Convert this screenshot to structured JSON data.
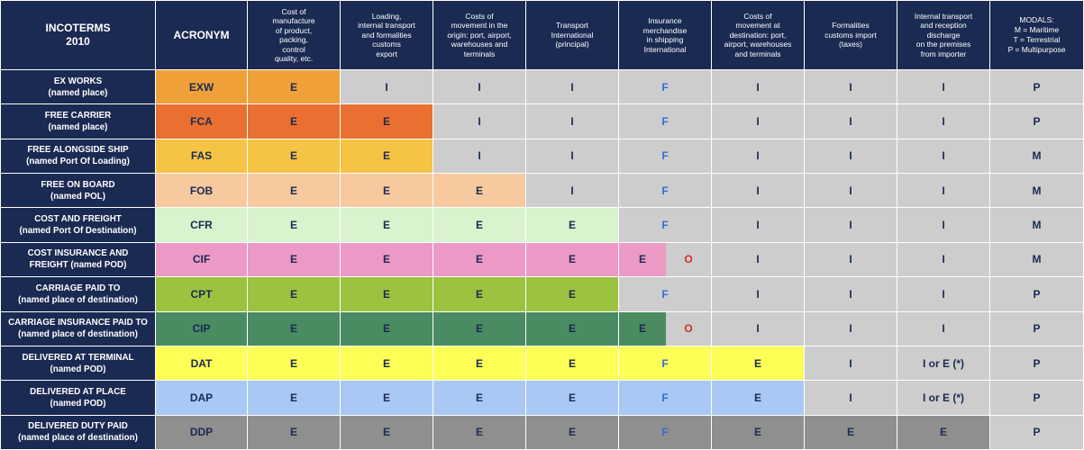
{
  "header": {
    "incoterms": [
      "INCOTERMS",
      "2010"
    ],
    "acronym": [
      "ACRONYM"
    ],
    "manufacture": [
      "Cost of",
      "manufacture",
      "of product,",
      "packing,",
      "control",
      "quality, etc."
    ],
    "loading": [
      "Loading,",
      "internal transport",
      "and formalities",
      "customs",
      "export"
    ],
    "origin": [
      "Costs of",
      "movement in the",
      "origin: port, airport,",
      "warehouses and",
      "terminals"
    ],
    "transport": [
      "Transport",
      "International",
      "(principal)"
    ],
    "insurance": [
      "Insurance",
      "merchandise",
      "in shipping",
      "International"
    ],
    "destination": [
      "Costs of",
      "movement at",
      "destination: port,",
      "airport, warehouses",
      "and terminals"
    ],
    "formalities": [
      "Formalities",
      "customs import",
      "(taxes)"
    ],
    "internal": [
      "Internal transport",
      "and reception",
      "discharge",
      "on the premises",
      "from importer"
    ],
    "modals": [
      "MODALS:",
      "M = Maritime",
      "T = Terrestrial",
      "P = Multipurpose"
    ]
  },
  "rows": [
    {
      "name": [
        "EX WORKS",
        "(named place)"
      ],
      "acronym": "EXW",
      "cells": [
        "E",
        "I",
        "I",
        "I",
        "F",
        "I",
        "I",
        "I"
      ],
      "modal": "P"
    },
    {
      "name": [
        "FREE CARRIER",
        "(named place)"
      ],
      "acronym": "FCA",
      "cells": [
        "E",
        "E",
        "I",
        "I",
        "F",
        "I",
        "I",
        "I"
      ],
      "modal": "P"
    },
    {
      "name": [
        "FREE ALONGSIDE SHIP",
        "(named Port Of Loading)"
      ],
      "acronym": "FAS",
      "cells": [
        "E",
        "E",
        "I",
        "I",
        "F",
        "I",
        "I",
        "I"
      ],
      "modal": "M"
    },
    {
      "name": [
        "FREE ON BOARD",
        "(named POL)"
      ],
      "acronym": "FOB",
      "cells": [
        "E",
        "E",
        "E",
        "I",
        "F",
        "I",
        "I",
        "I"
      ],
      "modal": "M"
    },
    {
      "name": [
        "COST AND FREIGHT",
        "(named Port Of Destination)"
      ],
      "acronym": "CFR",
      "cells": [
        "E",
        "E",
        "E",
        "E",
        "F",
        "I",
        "I",
        "I"
      ],
      "modal": "M"
    },
    {
      "name": [
        "COST INSURANCE AND",
        "FREIGHT (named POD)"
      ],
      "acronym": "CIF",
      "cells": [
        "E",
        "E",
        "E",
        "E",
        "E|O",
        "I",
        "I",
        "I"
      ],
      "modal": "M"
    },
    {
      "name": [
        "CARRIAGE PAID TO",
        "(named place of destination)"
      ],
      "acronym": "CPT",
      "cells": [
        "E",
        "E",
        "E",
        "E",
        "F",
        "I",
        "I",
        "I"
      ],
      "modal": "P"
    },
    {
      "name": [
        "CARRIAGE INSURANCE PAID TO",
        "(named place of destination)"
      ],
      "acronym": "CIP",
      "cells": [
        "E",
        "E",
        "E",
        "E",
        "E|O",
        "I",
        "I",
        "I"
      ],
      "modal": "P"
    },
    {
      "name": [
        "DELIVERED AT TERMINAL",
        "(named POD)"
      ],
      "acronym": "DAT",
      "cells": [
        "E",
        "E",
        "E",
        "E",
        "F",
        "E",
        "I",
        "I or E (*)"
      ],
      "modal": "P"
    },
    {
      "name": [
        "DELIVERED AT PLACE",
        "(named POD)"
      ],
      "acronym": "DAP",
      "cells": [
        "E",
        "E",
        "E",
        "E",
        "F",
        "E",
        "I",
        "I or E (*)"
      ],
      "modal": "P"
    },
    {
      "name": [
        "DELIVERED DUTY PAID",
        "(named place of destination)"
      ],
      "acronym": "DDP",
      "cells": [
        "E",
        "E",
        "E",
        "E",
        "F",
        "E",
        "E",
        "E"
      ],
      "modal": "P"
    }
  ],
  "colors": {
    "header_bg": "#1a2a52",
    "neutral_cell": "#cdcdcd",
    "exporter_F": "#2d6fd4",
    "optional_O": "#d42a2a",
    "EXW": "#f0a039",
    "FCA": "#ea7031",
    "FAS": "#f6c444",
    "FOB": "#f6c99f",
    "CFR": "#d8f3cd",
    "CIF": "#ec99c6",
    "CPT": "#9bc33f",
    "CIP": "#4a8b62",
    "DAT": "#fdfe56",
    "DAP": "#a9c9f4",
    "DDP": "#8f8f8f"
  }
}
